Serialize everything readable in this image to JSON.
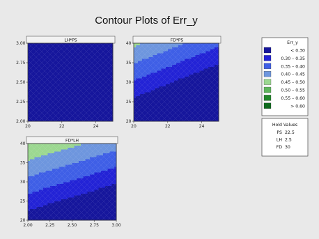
{
  "chart_data": {
    "type": "contour",
    "title": "Contour Plots of Err_y",
    "response": "Err_y",
    "colors": {
      "page_bg": "#e9e9e9",
      "panel_bg": "#ffffff",
      "header_bg": "#f2f2f2",
      "bands": [
        "#16169c",
        "#2323d6",
        "#3f5fe6",
        "#6e96de",
        "#9cd891",
        "#5fb55d",
        "#21872a",
        "#0e6a1d"
      ]
    },
    "panels": [
      {
        "label": "LH*PS",
        "xlim": [
          20,
          25
        ],
        "ylim": [
          2.0,
          3.0
        ],
        "xticks": [
          "20",
          "22",
          "24"
        ],
        "xtick_values": [
          20,
          22,
          24
        ],
        "yticks": [
          "2.00",
          "2.25",
          "2.50",
          "2.75",
          "3.00"
        ],
        "ytick_values": [
          2.0,
          2.25,
          2.5,
          2.75,
          3.0
        ],
        "surface": {
          "intercept": 0.64,
          "x_coef": -0.014,
          "y_coef": -0.08
        }
      },
      {
        "label": "FD*PS",
        "xlim": [
          20,
          25
        ],
        "ylim": [
          20,
          40
        ],
        "xticks": [
          "20",
          "22",
          "24"
        ],
        "xtick_values": [
          20,
          22,
          24
        ],
        "yticks": [
          "20",
          "25",
          "30",
          "35",
          "40"
        ],
        "ytick_values": [
          20,
          25,
          30,
          35,
          40
        ],
        "surface": {
          "intercept": 0.4,
          "x_coef": -0.02,
          "y_coef": 0.0115
        }
      },
      {
        "label": "FD*LH",
        "xlim": [
          2.0,
          3.0
        ],
        "ylim": [
          20,
          40
        ],
        "xticks": [
          "2.00",
          "2.25",
          "2.50",
          "2.75",
          "3.00"
        ],
        "xtick_values": [
          2.0,
          2.25,
          2.5,
          2.75,
          3.0
        ],
        "yticks": [
          "20",
          "25",
          "30",
          "35",
          "40"
        ],
        "ytick_values": [
          20,
          25,
          30,
          35,
          40
        ],
        "surface": {
          "intercept": 0.2,
          "x_coef": -0.08,
          "y_coef": 0.0115
        }
      }
    ],
    "legend": {
      "title": "Err_y",
      "entries": [
        {
          "label": "< 0.30"
        },
        {
          "label": "0.30 – 0.35"
        },
        {
          "label": "0.35 – 0.40"
        },
        {
          "label": "0.40 – 0.45"
        },
        {
          "label": "0.45 – 0.50"
        },
        {
          "label": "0.50 – 0.55"
        },
        {
          "label": "0.55 – 0.60"
        },
        {
          "label": "> 0.60"
        }
      ],
      "levels": [
        0.3,
        0.35,
        0.4,
        0.45,
        0.5,
        0.55,
        0.6
      ]
    },
    "hold_values": {
      "title": "Hold Values",
      "items": [
        {
          "name": "PS",
          "value": "22.5"
        },
        {
          "name": "LH",
          "value": "2.5"
        },
        {
          "name": "FD",
          "value": "30"
        }
      ]
    }
  }
}
